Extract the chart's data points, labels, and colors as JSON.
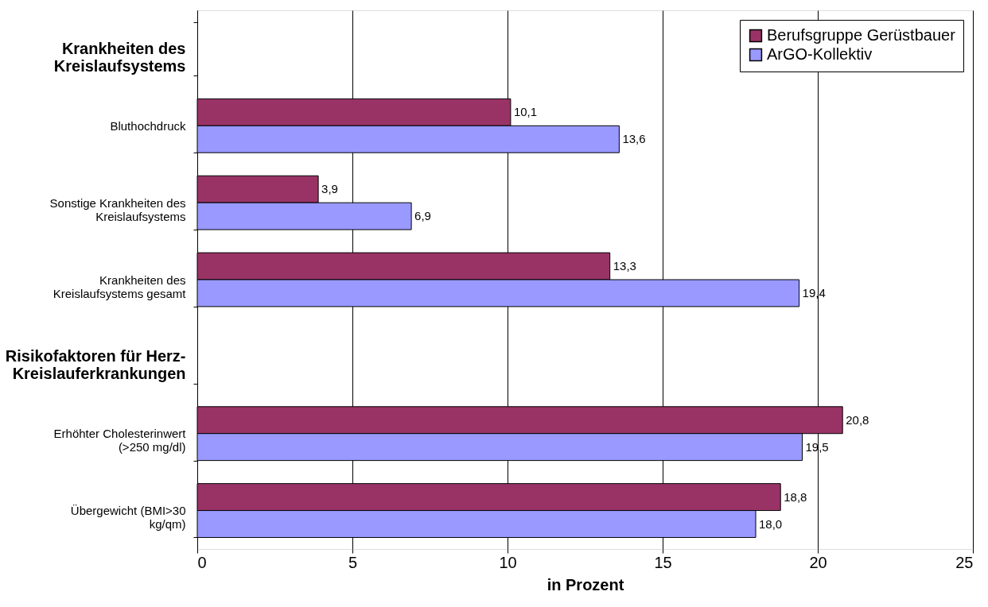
{
  "chart_data": {
    "type": "bar",
    "orientation": "horizontal",
    "xlabel": "in Prozent",
    "categories": [
      "Krankheiten des Kreislaufsystems",
      "Bluthochdruck",
      "Sonstige Krankheiten des Kreislaufsystems",
      "Krankheiten des Kreislaufsystems gesamt",
      "Risikofaktoren für Herz-Kreislauferkrankungen",
      "Erhöhter Cholesterinwert (>250 mg/dl)",
      "Übergewicht (BMI>30 kg/qm)"
    ],
    "series": [
      {
        "name": "Berufsgruppe Gerüstbauer",
        "color": "#993366",
        "values": [
          null,
          10.1,
          3.9,
          13.3,
          null,
          20.8,
          18.8
        ],
        "value_labels": [
          null,
          "10,1",
          "3,9",
          "13,3",
          null,
          "20,8",
          "18,8"
        ]
      },
      {
        "name": "ArGO-Kollektiv",
        "color": "#9999ff",
        "values": [
          null,
          13.6,
          6.9,
          19.4,
          null,
          19.5,
          18.0
        ],
        "value_labels": [
          null,
          "13,6",
          "6,9",
          "19,4",
          null,
          "19,5",
          "18,0"
        ]
      }
    ],
    "xlim": [
      0,
      25
    ],
    "xticks": [
      0,
      5,
      10,
      15,
      20,
      25
    ],
    "grid": "x",
    "legend": "top right"
  }
}
